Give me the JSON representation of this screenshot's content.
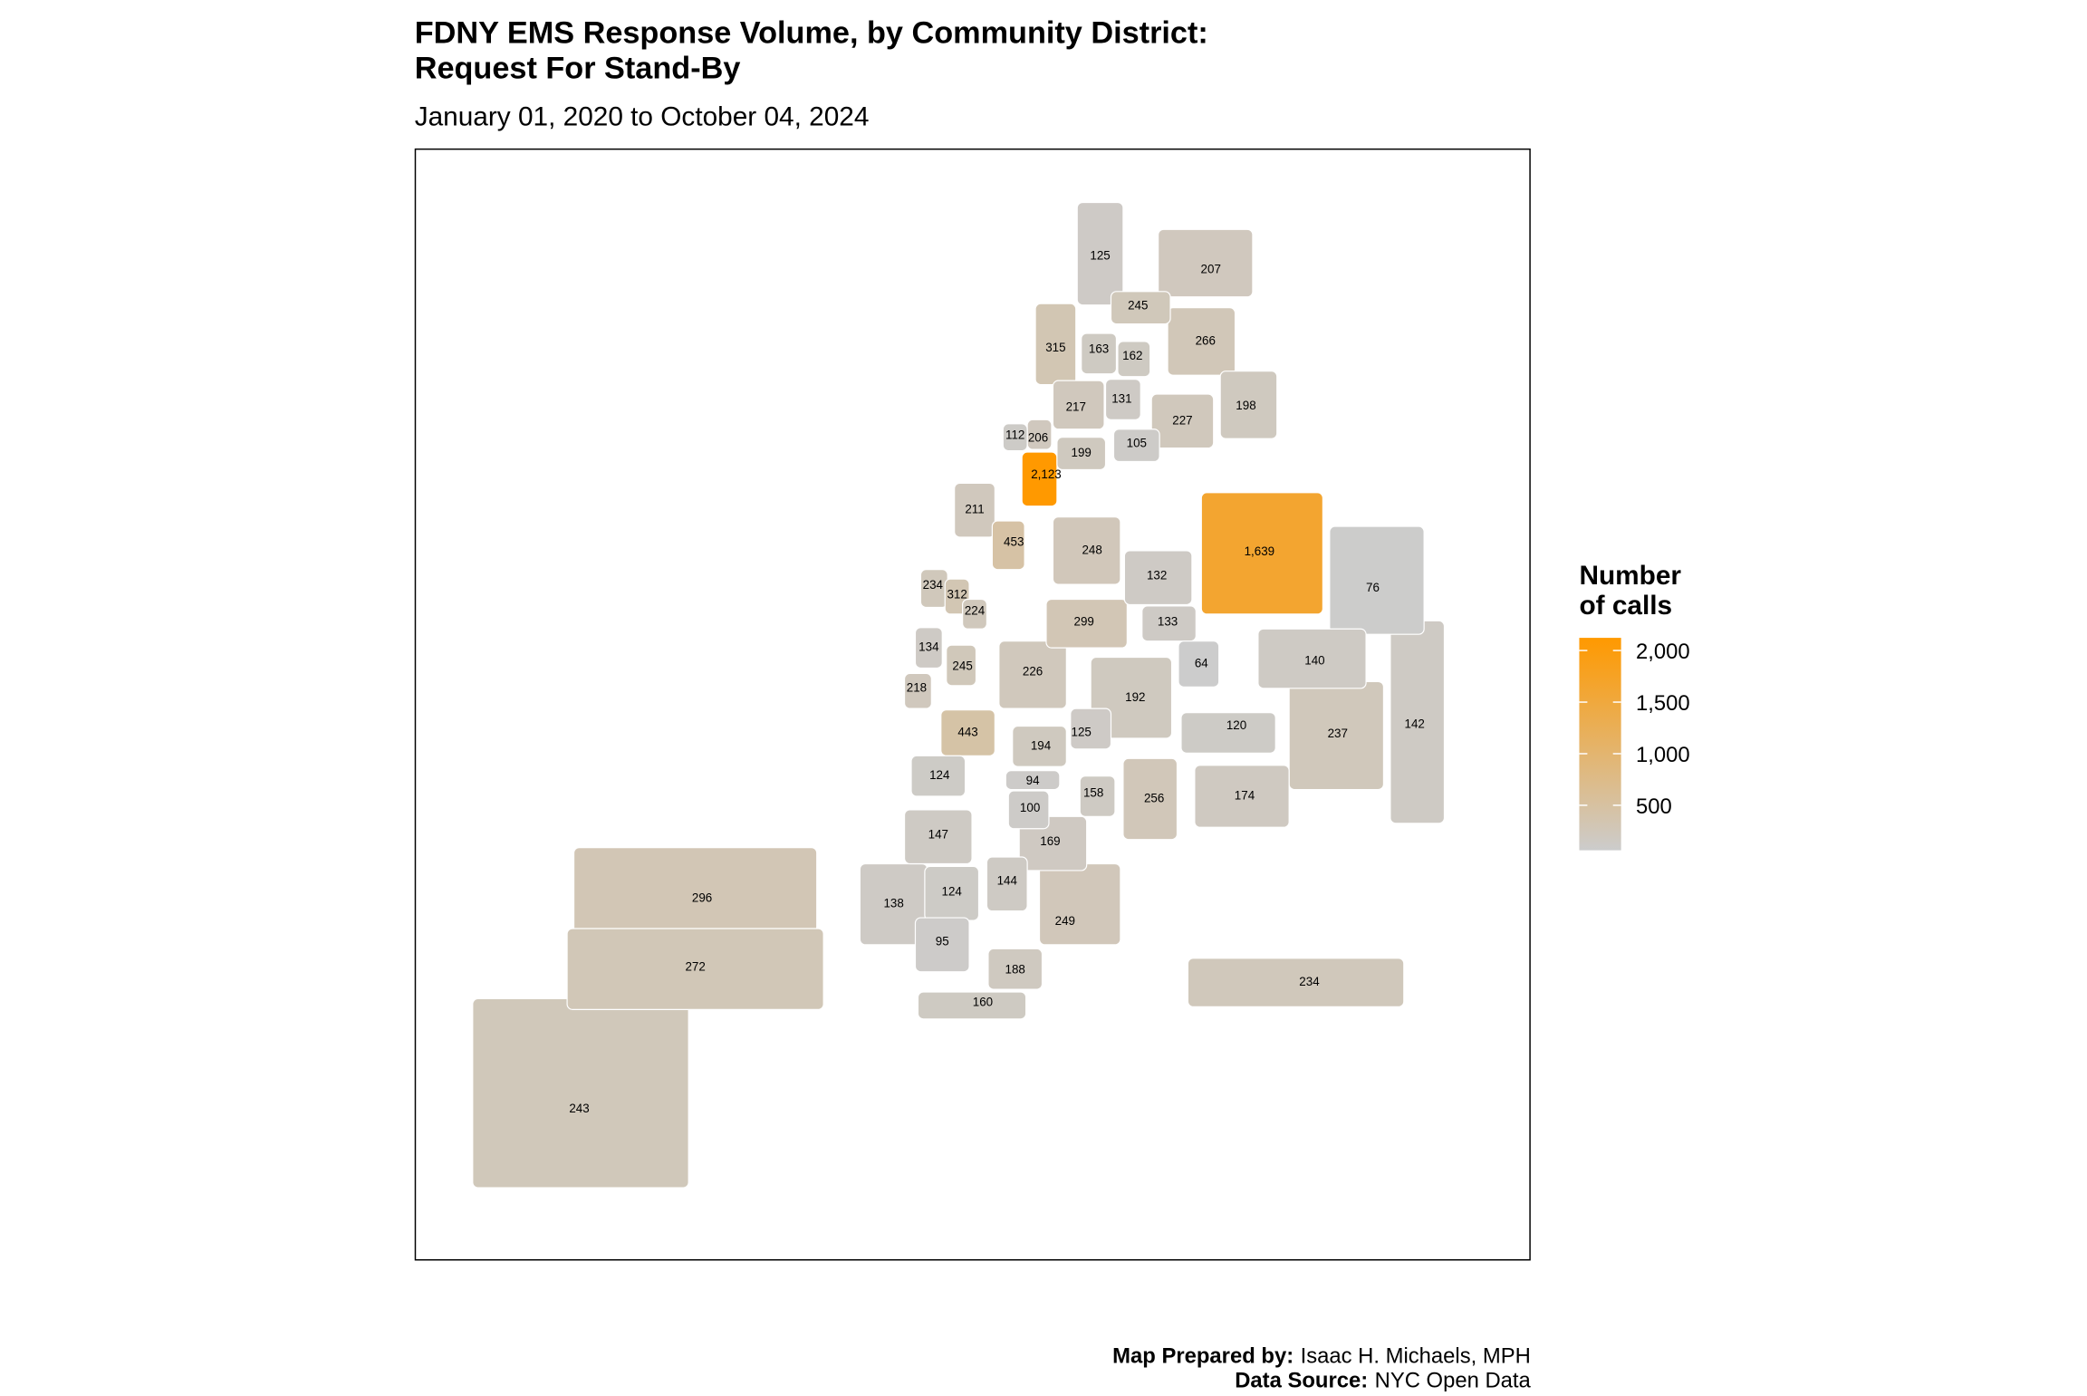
{
  "chart_data": {
    "type": "choropleth",
    "title": [
      "FDNY EMS Response Volume, by Community District:",
      "Request For Stand-By"
    ],
    "subtitle": "January 01, 2020 to October 04, 2024",
    "legend_title": [
      "Number",
      "of calls"
    ],
    "colorbar": {
      "lim": [
        64,
        2123
      ],
      "colors": [
        "#cccccc",
        "#ff9900"
      ],
      "ticks": [
        500,
        {
          "value": 1000,
          "label": "1,000"
        },
        {
          "value": 1500,
          "label": "1,500"
        },
        {
          "value": 2000,
          "label": "2,000"
        }
      ]
    },
    "districts": {
      "values": [
        125,
        207,
        245,
        266,
        315,
        163,
        162,
        217,
        131,
        227,
        198,
        105,
        206,
        199,
        112,
        2123,
        211,
        453,
        234,
        312,
        224,
        134,
        245,
        218,
        1639,
        248,
        132,
        76,
        299,
        133,
        64,
        140,
        192,
        120,
        237,
        142,
        226,
        174,
        443,
        194,
        125,
        124,
        94,
        158,
        100,
        256,
        147,
        169,
        144,
        124,
        138,
        249,
        95,
        188,
        160,
        234,
        296,
        272,
        243
      ],
      "value_labels": [
        "125",
        "207",
        "245",
        "266",
        "315",
        "163",
        "162",
        "217",
        "131",
        "227",
        "198",
        "105",
        "206",
        "199",
        "112",
        "2,123",
        "211",
        "453",
        "234",
        "312",
        "224",
        "134",
        "245",
        "218",
        "1,639",
        "248",
        "132",
        "76",
        "299",
        "133",
        "64",
        "140",
        "192",
        "120",
        "237",
        "142",
        "226",
        "174",
        "443",
        "194",
        "125",
        "124",
        "94",
        "158",
        "100",
        "256",
        "147",
        "169",
        "144",
        "124",
        "138",
        "249",
        "95",
        "188",
        "160",
        "234",
        "296",
        "272",
        "243"
      ]
    },
    "caption": [
      {
        "label": "Map Prepared by:",
        "text": "Isaac H. Michaels, MPH"
      },
      {
        "label": "Data Source:",
        "text": "NYC Open Data"
      }
    ]
  }
}
